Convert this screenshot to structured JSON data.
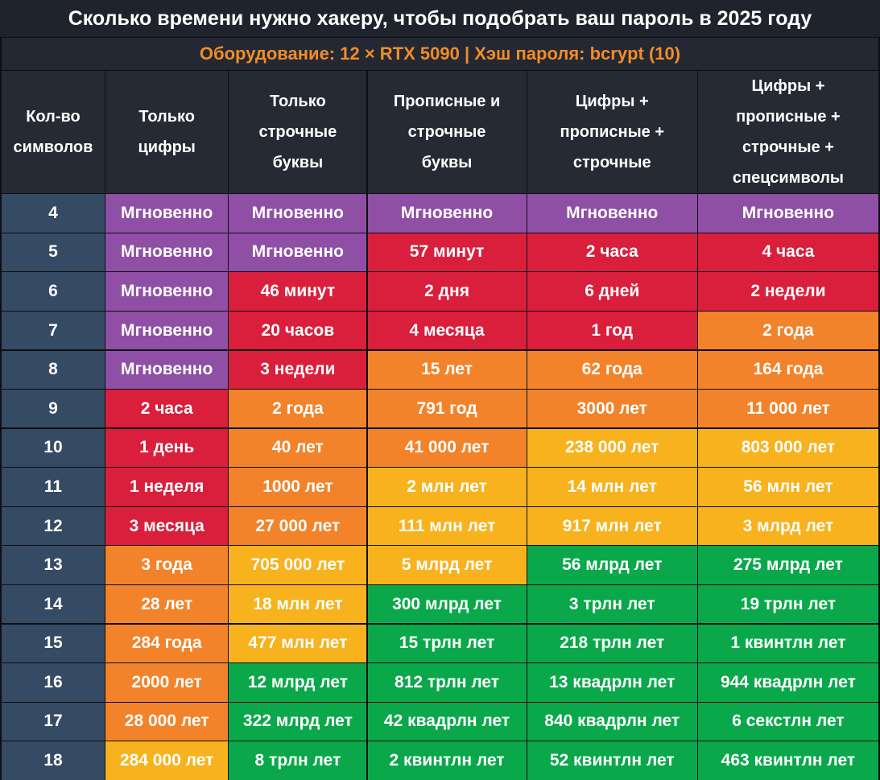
{
  "title": "Сколько времени нужно хакеру, чтобы подобрать ваш пароль в 2025 году",
  "subtitle": "Оборудование: 12 × RTX 5090 | Хэш пароля: bcrypt (10)",
  "colors": {
    "instant": "#8e4fa5",
    "red": "#d91f3c",
    "orange": "#f2832a",
    "yellow": "#f7b21e",
    "green": "#0aa84a",
    "row_header": "#354a63",
    "header_bg": "#252a33"
  },
  "chart_data": {
    "type": "table",
    "title": "Сколько времени нужно хакеру, чтобы подобрать ваш пароль в 2025 году",
    "subtitle": "Оборудование: 12 × RTX 5090 | Хэш пароля: bcrypt (10)",
    "columns": [
      "Кол-во символов",
      "Только цифры",
      "Только строчные буквы",
      "Прописные и строчные буквы",
      "Цифры + прописные + строчные",
      "Цифры + прописные + строчные + спецсимволы"
    ],
    "rows": [
      {
        "length": "4",
        "cells": [
          "Мгновенно",
          "Мгновенно",
          "Мгновенно",
          "Мгновенно",
          "Мгновенно"
        ],
        "levels": [
          "instant",
          "instant",
          "instant",
          "instant",
          "instant"
        ]
      },
      {
        "length": "5",
        "cells": [
          "Мгновенно",
          "Мгновенно",
          "57 минут",
          "2 часа",
          "4 часа"
        ],
        "levels": [
          "instant",
          "instant",
          "red",
          "red",
          "red"
        ]
      },
      {
        "length": "6",
        "cells": [
          "Мгновенно",
          "46 минут",
          "2 дня",
          "6 дней",
          "2 недели"
        ],
        "levels": [
          "instant",
          "red",
          "red",
          "red",
          "red"
        ]
      },
      {
        "length": "7",
        "cells": [
          "Мгновенно",
          "20 часов",
          "4 месяца",
          "1 год",
          "2 года"
        ],
        "levels": [
          "instant",
          "red",
          "red",
          "red",
          "orange"
        ]
      },
      {
        "length": "8",
        "cells": [
          "Мгновенно",
          "3 недели",
          "15 лет",
          "62 года",
          "164 года"
        ],
        "levels": [
          "instant",
          "red",
          "orange",
          "orange",
          "orange"
        ]
      },
      {
        "length": "9",
        "cells": [
          "2 часа",
          "2 года",
          "791 год",
          "3000 лет",
          "11 000 лет"
        ],
        "levels": [
          "red",
          "orange",
          "orange",
          "orange",
          "orange"
        ]
      },
      {
        "length": "10",
        "cells": [
          "1 день",
          "40 лет",
          "41 000 лет",
          "238 000 лет",
          "803 000 лет"
        ],
        "levels": [
          "red",
          "orange",
          "orange",
          "yellow",
          "yellow"
        ]
      },
      {
        "length": "11",
        "cells": [
          "1 неделя",
          "1000 лет",
          "2 млн лет",
          "14 млн лет",
          "56 млн лет"
        ],
        "levels": [
          "red",
          "orange",
          "yellow",
          "yellow",
          "yellow"
        ]
      },
      {
        "length": "12",
        "cells": [
          "3 месяца",
          "27 000 лет",
          "111 млн лет",
          "917 млн лет",
          "3 млрд лет"
        ],
        "levels": [
          "red",
          "orange",
          "yellow",
          "yellow",
          "yellow"
        ]
      },
      {
        "length": "13",
        "cells": [
          "3 года",
          "705 000 лет",
          "5 млрд лет",
          "56 млрд лет",
          "275 млрд лет"
        ],
        "levels": [
          "orange",
          "yellow",
          "yellow",
          "green",
          "green"
        ]
      },
      {
        "length": "14",
        "cells": [
          "28 лет",
          "18 млн лет",
          "300 млрд лет",
          "3 трлн лет",
          "19 трлн лет"
        ],
        "levels": [
          "orange",
          "yellow",
          "green",
          "green",
          "green"
        ]
      },
      {
        "length": "15",
        "cells": [
          "284 года",
          "477 млн лет",
          "15 трлн лет",
          "218 трлн лет",
          "1 квинтлн лет"
        ],
        "levels": [
          "orange",
          "yellow",
          "green",
          "green",
          "green"
        ]
      },
      {
        "length": "16",
        "cells": [
          "2000 лет",
          "12 млрд лет",
          "812 трлн лет",
          "13 квадрлн лет",
          "944 квадрлн лет"
        ],
        "levels": [
          "orange",
          "green",
          "green",
          "green",
          "green"
        ]
      },
      {
        "length": "17",
        "cells": [
          "28 000 лет",
          "322 млрд лет",
          "42 квадрлн лет",
          "840 квадрлн лет",
          "6 секстлн лет"
        ],
        "levels": [
          "orange",
          "green",
          "green",
          "green",
          "green"
        ]
      },
      {
        "length": "18",
        "cells": [
          "284 000 лет",
          "8 трлн лет",
          "2 квинтлн лет",
          "52 квинтлн лет",
          "463 квинтлн лет"
        ],
        "levels": [
          "yellow",
          "green",
          "green",
          "green",
          "green"
        ]
      }
    ]
  }
}
